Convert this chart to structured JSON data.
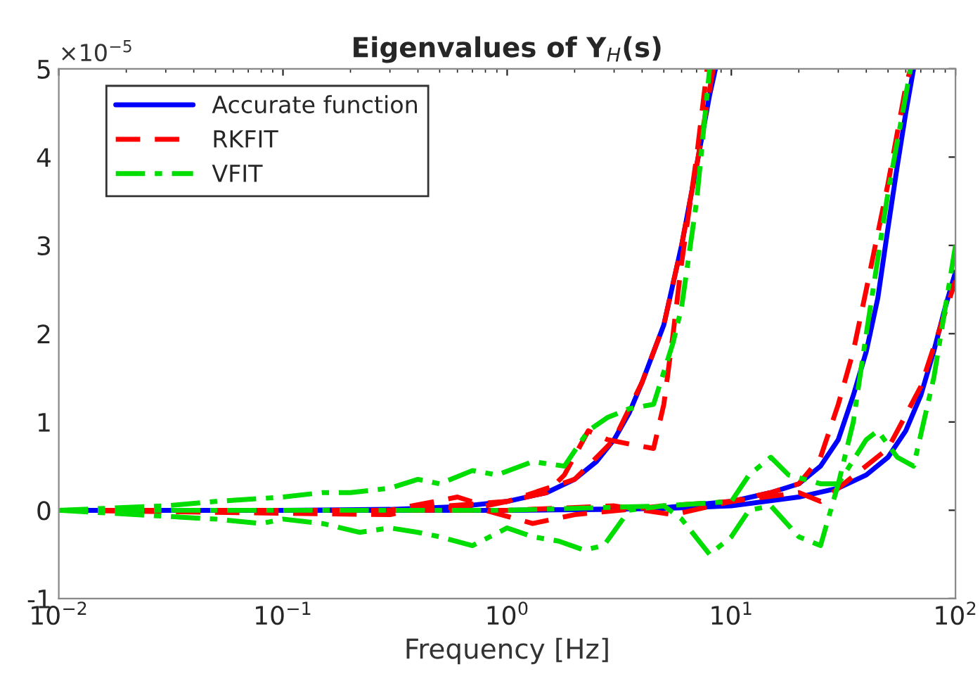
{
  "chart_data": {
    "type": "line",
    "title": "Eigenvalues of Y$_{H}$(s)",
    "xlabel": "Frequency [Hz]",
    "log": "x",
    "xlim": [
      0.01,
      100
    ],
    "ylim": [
      -1,
      5
    ],
    "xticks": [
      {
        "value": 0.01,
        "label": "10$^{−2}$"
      },
      {
        "value": 0.1,
        "label": "10$^{−1}$"
      },
      {
        "value": 1,
        "label": "10$^{0}$"
      },
      {
        "value": 10,
        "label": "10$^{1}$"
      },
      {
        "value": 100,
        "label": "10$^{2}$"
      }
    ],
    "yticks": [
      -1,
      0,
      1,
      2,
      3,
      4,
      5
    ],
    "annotations": [
      "×10$^{−5}$"
    ],
    "grid": false,
    "legend": "top left",
    "series": [
      {
        "name": "Accurate function",
        "color": "#0000ff",
        "line_style": "solid",
        "x": [
          0.01,
          0.1,
          0.3,
          0.6,
          1,
          1.5,
          2,
          2.5,
          3,
          3.5,
          4,
          5,
          6,
          7,
          8,
          8.5
        ],
        "values": [
          0,
          0,
          0.01,
          0.04,
          0.1,
          0.2,
          0.35,
          0.55,
          0.8,
          1.1,
          1.45,
          2.1,
          3.0,
          3.9,
          4.7,
          5.0
        ]
      },
      {
        "color": "#0000ff",
        "line_style": "solid",
        "x": [
          0.01,
          0.1,
          1,
          3,
          5,
          10,
          15,
          20,
          25,
          30,
          35,
          40,
          45,
          50,
          55,
          60,
          65
        ],
        "values": [
          0,
          0,
          0,
          0.01,
          0.03,
          0.1,
          0.2,
          0.3,
          0.5,
          0.8,
          1.3,
          1.8,
          2.4,
          3.2,
          3.9,
          4.5,
          5.0
        ]
      },
      {
        "color": "#0000ff",
        "line_style": "solid",
        "x": [
          0.01,
          0.1,
          1,
          5,
          10,
          20,
          30,
          40,
          50,
          60,
          70,
          80,
          90,
          100
        ],
        "values": [
          0,
          0,
          0,
          0.02,
          0.05,
          0.15,
          0.25,
          0.4,
          0.6,
          0.9,
          1.3,
          1.8,
          2.3,
          2.7
        ]
      },
      {
        "name": "RKFIT",
        "color": "#ff0000",
        "line_style": "dashed",
        "x": [
          0.01,
          0.1,
          0.3,
          0.6,
          0.8,
          1,
          1.5,
          1.8,
          2.3,
          2.8,
          3.5,
          4.5,
          5,
          5.5,
          6,
          7,
          7.8
        ],
        "values": [
          0,
          0,
          0,
          0.15,
          0.05,
          0.1,
          0.2,
          0.4,
          0.9,
          0.8,
          0.75,
          0.7,
          1.2,
          2.0,
          2.8,
          4.0,
          5.0
        ]
      },
      {
        "color": "#ff0000",
        "line_style": "dashed",
        "x": [
          0.01,
          0.3,
          1,
          2,
          3,
          4,
          5,
          6,
          7,
          8.3
        ],
        "values": [
          0,
          0,
          0.1,
          0.35,
          0.8,
          1.45,
          2.1,
          3.0,
          3.9,
          5.0
        ]
      },
      {
        "color": "#ff0000",
        "line_style": "dashed",
        "x": [
          0.01,
          0.3,
          0.45,
          0.8,
          1.3,
          2,
          5,
          10,
          15,
          20,
          25,
          30,
          35,
          40,
          50,
          60,
          63
        ],
        "values": [
          0,
          -0.05,
          0.05,
          0.0,
          -0.15,
          -0.05,
          0.05,
          0.1,
          0.2,
          0.3,
          0.6,
          1.2,
          1.8,
          2.5,
          3.7,
          4.8,
          5.0
        ]
      },
      {
        "color": "#ff0000",
        "line_style": "dashed",
        "x": [
          0.01,
          1,
          3,
          5.5,
          10,
          20,
          25,
          30,
          50,
          70,
          100
        ],
        "values": [
          0,
          0,
          0.05,
          -0.05,
          0.1,
          0.2,
          0.1,
          0.25,
          0.7,
          1.4,
          2.6
        ]
      },
      {
        "name": "VFIT",
        "color": "#00dd00",
        "line_style": "dashdot",
        "x": [
          0.01,
          0.03,
          0.05,
          0.1,
          0.15,
          0.2,
          0.3,
          0.4,
          0.5,
          0.7,
          0.9,
          1.3,
          1.8,
          2.3,
          2.8,
          3.5,
          4.5,
          5.5,
          6,
          7,
          8
        ],
        "values": [
          0,
          0.05,
          0.1,
          0.15,
          0.2,
          0.2,
          0.25,
          0.35,
          0.3,
          0.45,
          0.4,
          0.55,
          0.5,
          0.9,
          1.05,
          1.15,
          1.2,
          1.9,
          2.3,
          3.5,
          5.0
        ]
      },
      {
        "color": "#00dd00",
        "line_style": "dashdot",
        "x": [
          0.01,
          0.05,
          0.08,
          0.1,
          0.15,
          0.22,
          0.3,
          0.4,
          0.5,
          0.7,
          1,
          1.3,
          1.7,
          2.2,
          2.7,
          3.5,
          5,
          6,
          8,
          10,
          12,
          15,
          20,
          25,
          30,
          35,
          40,
          50,
          60,
          63
        ],
        "values": [
          0,
          -0.1,
          -0.15,
          -0.1,
          -0.15,
          -0.25,
          -0.2,
          -0.25,
          -0.3,
          -0.4,
          -0.2,
          -0.3,
          -0.35,
          -0.45,
          -0.4,
          0,
          0.05,
          -0.1,
          -0.5,
          -0.3,
          0,
          0.05,
          -0.3,
          -0.4,
          0.3,
          1.0,
          2.0,
          3.6,
          4.7,
          5.0
        ]
      },
      {
        "color": "#00dd00",
        "line_style": "dashdot",
        "x": [
          0.01,
          1,
          5,
          10,
          12,
          15,
          18,
          25,
          30,
          40,
          45,
          55,
          65,
          80,
          100
        ],
        "values": [
          0,
          0,
          0.05,
          0.1,
          0.4,
          0.6,
          0.4,
          0.3,
          0.3,
          0.8,
          0.9,
          0.6,
          0.5,
          1.5,
          3.0
        ]
      }
    ]
  }
}
